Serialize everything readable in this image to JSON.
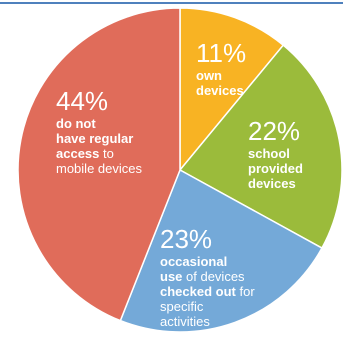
{
  "chart_data": {
    "type": "pie",
    "slices": [
      {
        "id": "own",
        "value": 11,
        "percent_label": "11%",
        "color": "#f8b323",
        "text_parts": [
          {
            "t": "own",
            "bold": true,
            "br": true
          },
          {
            "t": "devices",
            "bold": true
          }
        ]
      },
      {
        "id": "school",
        "value": 22,
        "percent_label": "22%",
        "color": "#9bbb3b",
        "text_parts": [
          {
            "t": "school",
            "bold": true,
            "br": true
          },
          {
            "t": "provided",
            "bold": true,
            "br": true
          },
          {
            "t": "devices",
            "bold": true
          }
        ]
      },
      {
        "id": "checked",
        "value": 23,
        "percent_label": "23%",
        "color": "#74a9d8",
        "text_parts": [
          {
            "t": "occasional",
            "bold": true,
            "br": true
          },
          {
            "t": "use",
            "bold": true
          },
          {
            "t": " of devices",
            "bold": false,
            "br": true
          },
          {
            "t": "checked out",
            "bold": true
          },
          {
            "t": " for",
            "bold": false,
            "br": true
          },
          {
            "t": "specific",
            "bold": false,
            "br": true
          },
          {
            "t": "activities",
            "bold": false
          }
        ]
      },
      {
        "id": "none",
        "value": 44,
        "percent_label": "44%",
        "color": "#e06c5a",
        "text_parts": [
          {
            "t": "do not",
            "bold": true,
            "br": true
          },
          {
            "t": "have regular",
            "bold": true,
            "br": true
          },
          {
            "t": "access",
            "bold": true
          },
          {
            "t": " to",
            "bold": false,
            "br": true
          },
          {
            "t": "mobile devices",
            "bold": false
          }
        ]
      }
    ],
    "start_angle_deg": 0,
    "direction": "clockwise",
    "legend": "none"
  },
  "colors": {
    "top_rule": "#4f81bd",
    "label_text": "#ffffff"
  }
}
